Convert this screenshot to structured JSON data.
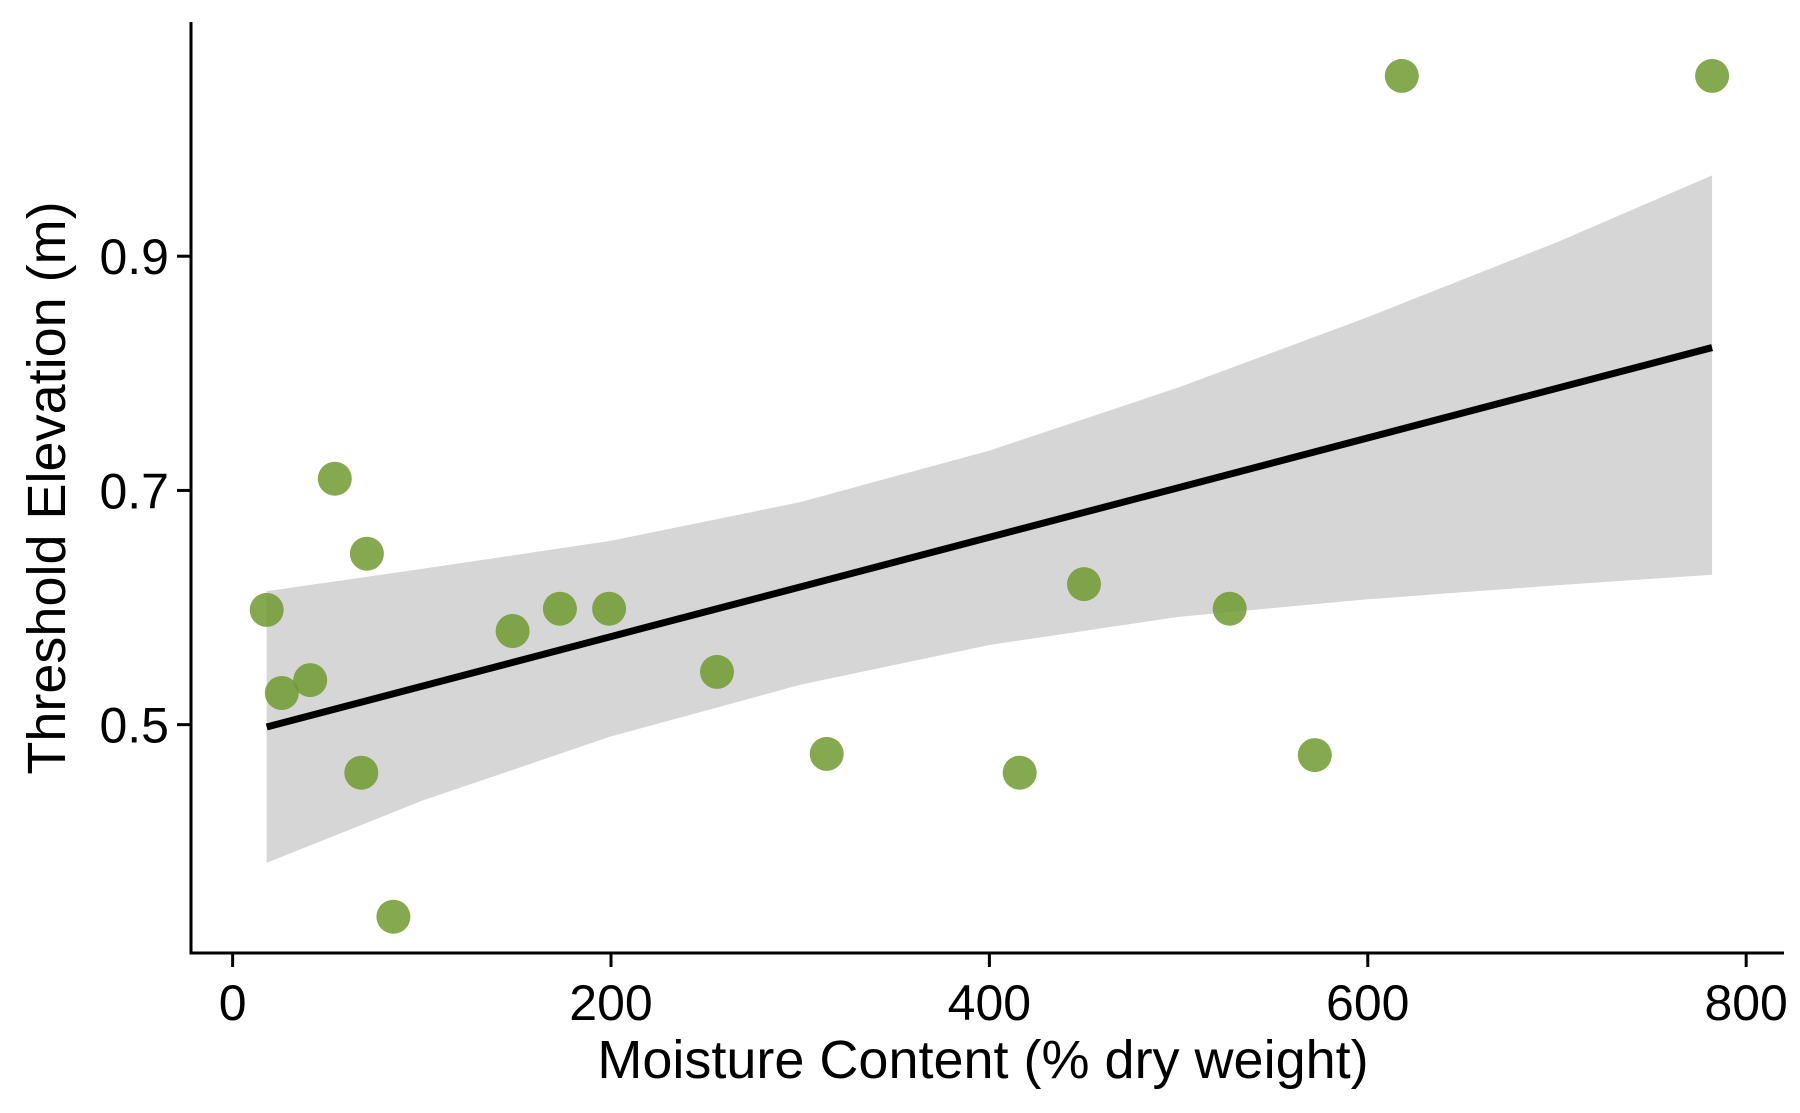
{
  "chart_data": {
    "type": "scatter",
    "title": "",
    "xlabel": "Moisture Content (% dry weight)",
    "ylabel": "Threshold Elevation (m)",
    "xlim": [
      -22,
      820
    ],
    "ylim": [
      0.305,
      1.1
    ],
    "x_ticks": [
      0,
      200,
      400,
      600,
      800
    ],
    "y_ticks": [
      0.5,
      0.7,
      0.9
    ],
    "x_tick_labels": [
      "0",
      "200",
      "400",
      "600",
      "800"
    ],
    "y_tick_labels": [
      "0.5",
      "0.7",
      "0.9"
    ],
    "grid": false,
    "point_color": "#6e9a2f",
    "points": [
      {
        "x": 18,
        "y": 0.598
      },
      {
        "x": 26,
        "y": 0.527
      },
      {
        "x": 41,
        "y": 0.538
      },
      {
        "x": 54,
        "y": 0.71
      },
      {
        "x": 68,
        "y": 0.459
      },
      {
        "x": 71,
        "y": 0.646
      },
      {
        "x": 85,
        "y": 0.336
      },
      {
        "x": 148,
        "y": 0.58
      },
      {
        "x": 173,
        "y": 0.599
      },
      {
        "x": 199,
        "y": 0.599
      },
      {
        "x": 256,
        "y": 0.545
      },
      {
        "x": 314,
        "y": 0.475
      },
      {
        "x": 416,
        "y": 0.459
      },
      {
        "x": 450,
        "y": 0.62
      },
      {
        "x": 527,
        "y": 0.599
      },
      {
        "x": 572,
        "y": 0.474
      },
      {
        "x": 618,
        "y": 1.054
      },
      {
        "x": 782,
        "y": 1.054
      }
    ],
    "fit_line": {
      "x": [
        18,
        782
      ],
      "y": [
        0.498,
        0.822
      ],
      "color": "#000000"
    },
    "confidence_band": {
      "color": "#d6d6d6",
      "x": [
        18,
        100,
        200,
        300,
        400,
        500,
        600,
        700,
        782
      ],
      "upper": [
        0.614,
        0.633,
        0.657,
        0.69,
        0.734,
        0.788,
        0.848,
        0.912,
        0.969
      ],
      "lower": [
        0.382,
        0.435,
        0.49,
        0.534,
        0.568,
        0.592,
        0.607,
        0.619,
        0.628
      ]
    }
  }
}
